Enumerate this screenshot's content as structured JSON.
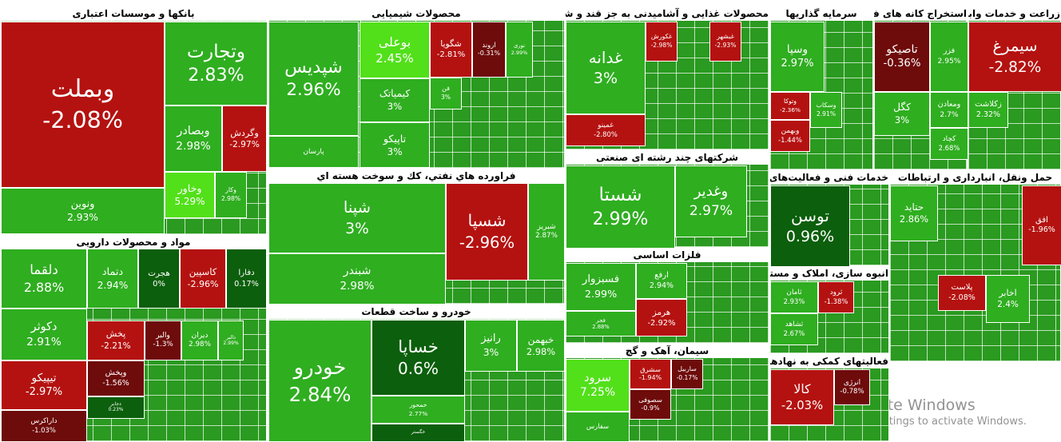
{
  "sectors": [
    {
      "title": "بانکها و موسسات اعتباری",
      "tiles": [
        {
          "name": "وبملت",
          "change": "-2.08%"
        },
        {
          "name": "وتجارت",
          "change": "2.83%"
        },
        {
          "name": "وبصادر",
          "change": "2.98%"
        },
        {
          "name": "وگردش",
          "change": "-2.97%"
        },
        {
          "name": "ونوین",
          "change": "2.93%"
        },
        {
          "name": "وخاور",
          "change": "5.29%"
        },
        {
          "name": "وکار",
          "change": "2.98%"
        }
      ]
    },
    {
      "title": "مواد و محصولات دارویی",
      "tiles": [
        {
          "name": "دلقما",
          "change": "2.88%"
        },
        {
          "name": "دتماد",
          "change": "2.94%"
        },
        {
          "name": "هجرت",
          "change": "0%"
        },
        {
          "name": "کاسپین",
          "change": "-2.96%"
        },
        {
          "name": "دفارا",
          "change": "0.17%"
        },
        {
          "name": "دکوثر",
          "change": "2.91%"
        },
        {
          "name": "پخش",
          "change": "-2.21%"
        },
        {
          "name": "والبر",
          "change": "-1.3%"
        },
        {
          "name": "دیران",
          "change": "2.98%"
        },
        {
          "name": "دالبر",
          "change": "2.99%"
        },
        {
          "name": "تیپیکو",
          "change": "-2.97%"
        },
        {
          "name": "وپخش",
          "change": "-1.56%"
        },
        {
          "name": "دجابر",
          "change": "0.23%"
        },
        {
          "name": "داراکرس",
          "change": "-1.03%"
        }
      ]
    },
    {
      "title": "محصولات شیمیایی",
      "tiles": [
        {
          "name": "شپدیس",
          "change": "2.96%"
        },
        {
          "name": "بوعلی",
          "change": "2.45%"
        },
        {
          "name": "شگویا",
          "change": "-2.81%"
        },
        {
          "name": "اروند",
          "change": "-0.31%"
        },
        {
          "name": "نوری",
          "change": "2.99%"
        },
        {
          "name": "کیمیاتک",
          "change": "3%"
        },
        {
          "name": "تاپیکو",
          "change": "3%"
        },
        {
          "name": "فن",
          "change": "3%"
        },
        {
          "name": "پارسان"
        }
      ]
    },
    {
      "title": "فراورده هاي نفتي، كك و سوخت هسته اي",
      "tiles": [
        {
          "name": "شپنا",
          "change": "3%"
        },
        {
          "name": "شبندر",
          "change": "2.98%"
        },
        {
          "name": "شسپا",
          "change": "-2.96%"
        },
        {
          "name": "شبریز",
          "change": "2.87%"
        }
      ]
    },
    {
      "title": "خودرو و ساخت قطعات",
      "tiles": [
        {
          "name": "خودرو",
          "change": "2.84%"
        },
        {
          "name": "خساپا",
          "change": "0.6%"
        },
        {
          "name": "رانیز",
          "change": "3%"
        },
        {
          "name": "خبهمن",
          "change": "2.98%"
        },
        {
          "name": "خمحور",
          "change": "2.77%"
        },
        {
          "name": "خگستر"
        }
      ]
    },
    {
      "title": "محصولات غذایی و آشامیدنی به جز قند و شکر",
      "tiles": [
        {
          "name": "غدانه",
          "change": "3%"
        },
        {
          "name": "غکورش",
          "change": "-2.98%"
        },
        {
          "name": "غبشهر",
          "change": "-2.93%"
        },
        {
          "name": "غمینو",
          "change": "-2.80%"
        }
      ]
    },
    {
      "title": "شرکتهای چند رشته ای صنعتی",
      "tiles": [
        {
          "name": "شستا",
          "change": "2.99%"
        },
        {
          "name": "وغدیر",
          "change": "2.97%"
        }
      ]
    },
    {
      "title": "فلزات اساسی",
      "tiles": [
        {
          "name": "فسبزوار",
          "change": "2.99%"
        },
        {
          "name": "ارفع",
          "change": "2.94%"
        },
        {
          "name": "هرمز",
          "change": "-2.92%"
        },
        {
          "name": "فجر",
          "change": "2.88%"
        }
      ]
    },
    {
      "title": "سیمان، آهک و گچ",
      "tiles": [
        {
          "name": "سرود",
          "change": "7.25%"
        },
        {
          "name": "سشرق",
          "change": "-1.94%"
        },
        {
          "name": "سصوفی",
          "change": "-0.9%"
        },
        {
          "name": "ساربیل",
          "change": "-0.17%"
        },
        {
          "name": "سفارس"
        }
      ]
    },
    {
      "title": "سرمایه گذاریها",
      "tiles": [
        {
          "name": "وسپا",
          "change": "2.97%"
        },
        {
          "name": "وتوکا",
          "change": "-2.36%"
        },
        {
          "name": "وسکاب",
          "change": "2.91%"
        },
        {
          "name": "وبهمن",
          "change": "-1.44%"
        }
      ]
    },
    {
      "title": "استخراج کانه های فلزی",
      "tiles": [
        {
          "name": "تاصیکو",
          "change": "-0.36%"
        },
        {
          "name": "فزر",
          "change": "2.95%"
        },
        {
          "name": "کگل",
          "change": "3%"
        },
        {
          "name": "ومعادن",
          "change": "2.7%"
        },
        {
          "name": "کچاد",
          "change": "2.68%"
        }
      ]
    },
    {
      "title": "زراعت و خدمات وابسته",
      "tiles": [
        {
          "name": "سیمرغ",
          "change": "-2.82%"
        },
        {
          "name": "زکلاشت",
          "change": "2.32%"
        }
      ]
    },
    {
      "title": "خدمات فنی و فعالیت‌های وابسته به آن",
      "tiles": [
        {
          "name": "توسن",
          "change": "0.96%"
        }
      ]
    },
    {
      "title": "انبوه سازی، املاک و مستغلات",
      "tiles": [
        {
          "name": "ثامان",
          "change": "2.93%"
        },
        {
          "name": "ثرود",
          "change": "-1.38%"
        },
        {
          "name": "ثشاهد",
          "change": "2.67%"
        }
      ]
    },
    {
      "title": "فعالیتهای کمکی به نهادهای مالی واسط",
      "tiles": [
        {
          "name": "کالا",
          "change": "-2.03%"
        },
        {
          "name": "انرژی",
          "change": "-0.78%"
        }
      ]
    },
    {
      "title": "حمل ونقل، انبارداری و ارتباطات",
      "tiles": [
        {
          "name": "حتاید",
          "change": "2.86%"
        },
        {
          "name": "افق",
          "change": "-1.96%"
        },
        {
          "name": "پلاست",
          "change": "-2.08%"
        },
        {
          "name": "اخابر",
          "change": "2.4%"
        }
      ]
    }
  ],
  "watermark": {
    "title": "Activate Windows",
    "subtitle": "Go to Settings to activate Windows."
  }
}
